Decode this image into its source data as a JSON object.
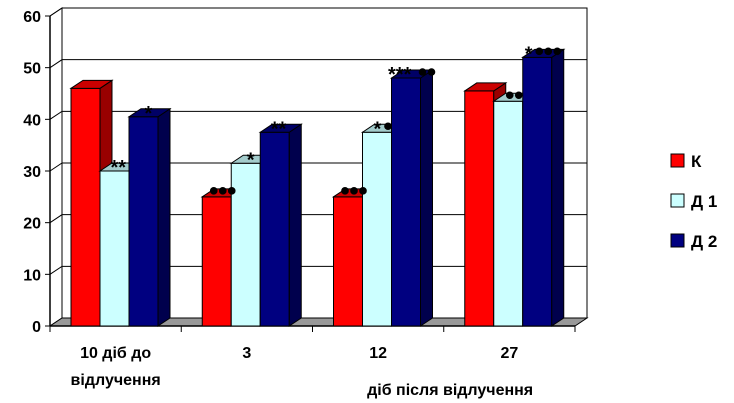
{
  "chart_data": {
    "type": "bar",
    "categories": [
      "10 діб до\nвідлучення",
      "3",
      "12",
      "27"
    ],
    "xlabel": "діб після відлучення",
    "ylabel": "",
    "ylim": [
      0,
      60
    ],
    "yticks": [
      0,
      10,
      20,
      30,
      40,
      50,
      60
    ],
    "grid": true,
    "legend_position": "right",
    "series": [
      {
        "name": "К",
        "color": "#ff0000",
        "values": [
          46,
          25,
          25,
          45.5
        ]
      },
      {
        "name": "Д 1",
        "color": "#ccffff",
        "values": [
          30,
          31.5,
          37.5,
          43.5
        ]
      },
      {
        "name": "Д 2",
        "color": "#000080",
        "values": [
          40.5,
          37.5,
          48,
          52
        ]
      }
    ],
    "annotations": [
      [
        [
          "",
          0
        ],
        [
          "**",
          0
        ],
        [
          "*",
          0
        ]
      ],
      [
        [
          "",
          3
        ],
        [
          "*",
          0
        ],
        [
          "**",
          0
        ]
      ],
      [
        [
          "",
          3
        ],
        [
          "*",
          1
        ],
        [
          "***",
          2
        ]
      ],
      [
        [
          "",
          0
        ],
        [
          "",
          2
        ],
        [
          "*",
          3
        ]
      ]
    ]
  }
}
